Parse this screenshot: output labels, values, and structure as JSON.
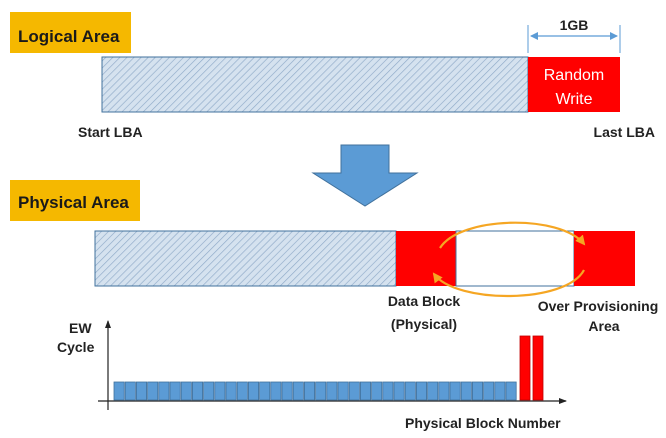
{
  "logical_area": {
    "title": "Logical Area",
    "size_label": "1GB",
    "random_write_line1": "Random",
    "random_write_line2": "Write",
    "start_label": "Start LBA",
    "end_label": "Last LBA"
  },
  "physical_area": {
    "title": "Physical Area",
    "data_block_line1": "Data Block",
    "data_block_line2": "(Physical)",
    "op_line1": "Over Provisioning",
    "op_line2": "Area"
  },
  "ew_chart": {
    "y_label_line1": "EW",
    "y_label_line2": "Cycle",
    "x_label": "Physical Block Number",
    "low_bar_count": 36,
    "high_bar_count": 2
  },
  "colors": {
    "tag": "#f5b800",
    "red": "#ff0000",
    "blue": "#5b9bd5",
    "blue_dark": "#41719c",
    "hatch_bg": "#d5e2ef",
    "hatch_line": "#8faac8",
    "orange": "#f5a623"
  }
}
